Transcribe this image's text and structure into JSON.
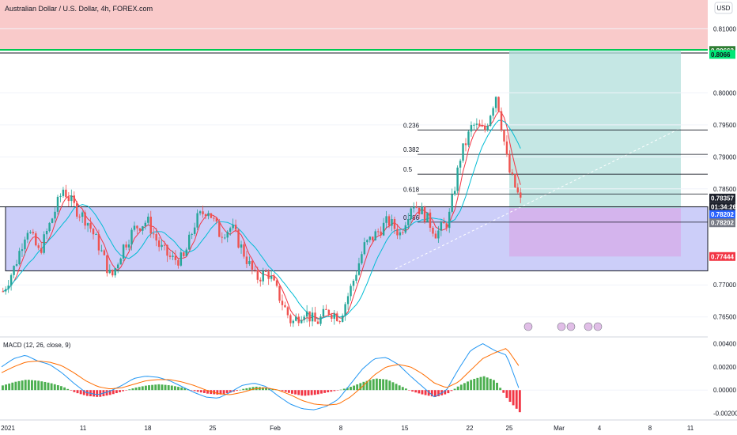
{
  "header": {
    "title": "Australian Dollar / U.S. Dollar, 4h, FOREX.com",
    "currency": "USD",
    "macd_label": "MACD (12, 26, close, 9)"
  },
  "chart_data": [
    {
      "type": "candlestick",
      "title": "Australian Dollar / U.S. Dollar, 4h, FOREX.com",
      "ylim": [
        0.762,
        0.8145
      ],
      "y_ticks": [
        "0.81000",
        "0.80000",
        "0.79500",
        "0.79000",
        "0.78500",
        "0.77000",
        "0.76500"
      ],
      "x_ticks": [
        "2021",
        "11",
        "18",
        "25",
        "Feb",
        "8",
        "15",
        "22",
        "25",
        "Mar",
        "4",
        "8",
        "11"
      ],
      "moving_averages": [
        {
          "color": "#f23645",
          "period_hint": "fast"
        },
        {
          "color": "#00bcd4",
          "period_hint": "slow"
        }
      ],
      "price_path": [
        0.769,
        0.773,
        0.779,
        0.775,
        0.78,
        0.785,
        0.782,
        0.78,
        0.776,
        0.771,
        0.776,
        0.779,
        0.78,
        0.776,
        0.774,
        0.774,
        0.78,
        0.782,
        0.778,
        0.779,
        0.775,
        0.771,
        0.772,
        0.768,
        0.764,
        0.766,
        0.764,
        0.766,
        0.765,
        0.77,
        0.776,
        0.778,
        0.78,
        0.778,
        0.783,
        0.781,
        0.778,
        0.78,
        0.79,
        0.795,
        0.794,
        0.8,
        0.788,
        0.783
      ],
      "fibonacci": [
        {
          "label": "0.236",
          "price": 0.7942
        },
        {
          "label": "0.382",
          "price": 0.7904
        },
        {
          "label": "0.5",
          "price": 0.7873
        },
        {
          "label": "0.618",
          "price": 0.7842
        },
        {
          "label": "0.786",
          "price": 0.7798
        }
      ],
      "zones": [
        {
          "name": "resistance-zone",
          "from": 0.8066,
          "to": 0.8145,
          "color": "#f8c4c4"
        },
        {
          "name": "demand-zone",
          "from": 0.7722,
          "to": 0.7822,
          "color": "#c3c5f8"
        }
      ],
      "position": {
        "entry": 0.782,
        "target": 0.80662,
        "stop": 0.77444
      },
      "price_tags": [
        {
          "label": "0.80662",
          "price": 0.80662,
          "bg": "#2e7d32"
        },
        {
          "label": "0.8066",
          "price": 0.806,
          "bg": "#00e676",
          "dark": true
        },
        {
          "label": "0.78357",
          "price": 0.78357,
          "bg": "#1e222d"
        },
        {
          "label": "01:34:26",
          "price": 0.7822,
          "bg": "#1e222d"
        },
        {
          "label": "0.78202",
          "price": 0.781,
          "bg": "#2962ff"
        },
        {
          "label": "0.78202",
          "price": 0.7797,
          "bg": "#787b86"
        },
        {
          "label": "0.77444",
          "price": 0.77444,
          "bg": "#f23645"
        }
      ]
    },
    {
      "type": "bar",
      "title": "MACD (12, 26, close, 9)",
      "ylim": [
        -0.0025,
        0.0045
      ],
      "y_ticks": [
        "0.00400",
        "0.00200",
        "0.00000",
        "-0.00200"
      ],
      "histogram": [
        0.0004,
        0.0007,
        0.0009,
        0.0008,
        0.0006,
        0.0003,
        -0.0002,
        -0.0005,
        -0.0006,
        -0.0004,
        -0.0001,
        0.0002,
        0.0004,
        0.0005,
        0.0004,
        0.0002,
        -0.0001,
        -0.0003,
        -0.0004,
        -0.0002,
        0.0001,
        0.0003,
        0.0002,
        0.0,
        -0.0003,
        -0.0005,
        -0.0004,
        -0.0002,
        0.0,
        0.0003,
        0.0007,
        0.001,
        0.0009,
        0.0004,
        -0.0001,
        -0.0004,
        -0.0006,
        -0.0003,
        0.0004,
        0.0009,
        0.0012,
        0.0008,
        -0.0008,
        -0.0019
      ],
      "macd_line": [
        0.002,
        0.0027,
        0.003,
        0.0025,
        0.0022,
        0.0015,
        0.0006,
        -0.0002,
        -0.0004,
        -0.0001,
        0.0004,
        0.001,
        0.0012,
        0.0011,
        0.0008,
        0.0003,
        -0.0002,
        -0.0006,
        -0.0007,
        -0.0002,
        0.0004,
        0.0006,
        0.0003,
        -0.0005,
        -0.0012,
        -0.0016,
        -0.0017,
        -0.0014,
        -0.0008,
        0.0005,
        0.0018,
        0.0027,
        0.0028,
        0.0022,
        0.0012,
        0.0003,
        -0.0006,
        0.0,
        0.0018,
        0.0034,
        0.004,
        0.0034,
        0.003,
        0.0002
      ],
      "signal_line": [
        0.0015,
        0.002,
        0.0024,
        0.0025,
        0.0024,
        0.0021,
        0.0015,
        0.0008,
        0.0003,
        0.0001,
        0.0002,
        0.0005,
        0.0008,
        0.0009,
        0.0009,
        0.0007,
        0.0004,
        0.0,
        -0.0003,
        -0.0004,
        -0.0002,
        0.0001,
        0.0002,
        0.0,
        -0.0004,
        -0.0009,
        -0.0012,
        -0.0013,
        -0.0012,
        -0.0006,
        0.0003,
        0.0013,
        0.002,
        0.0022,
        0.002,
        0.0014,
        0.0006,
        0.0002,
        0.0007,
        0.0017,
        0.0027,
        0.0032,
        0.0036,
        0.0021
      ]
    }
  ],
  "colors": {
    "up": "#26a69a",
    "down": "#ef5350",
    "hist_up": "#4caf50",
    "hist_down": "#f23645",
    "macd": "#2196f3",
    "signal": "#ff6d00",
    "target_zone": "#b2dfdb",
    "stop_zone": "#e1bee7",
    "grid": "#f0f3fa"
  }
}
